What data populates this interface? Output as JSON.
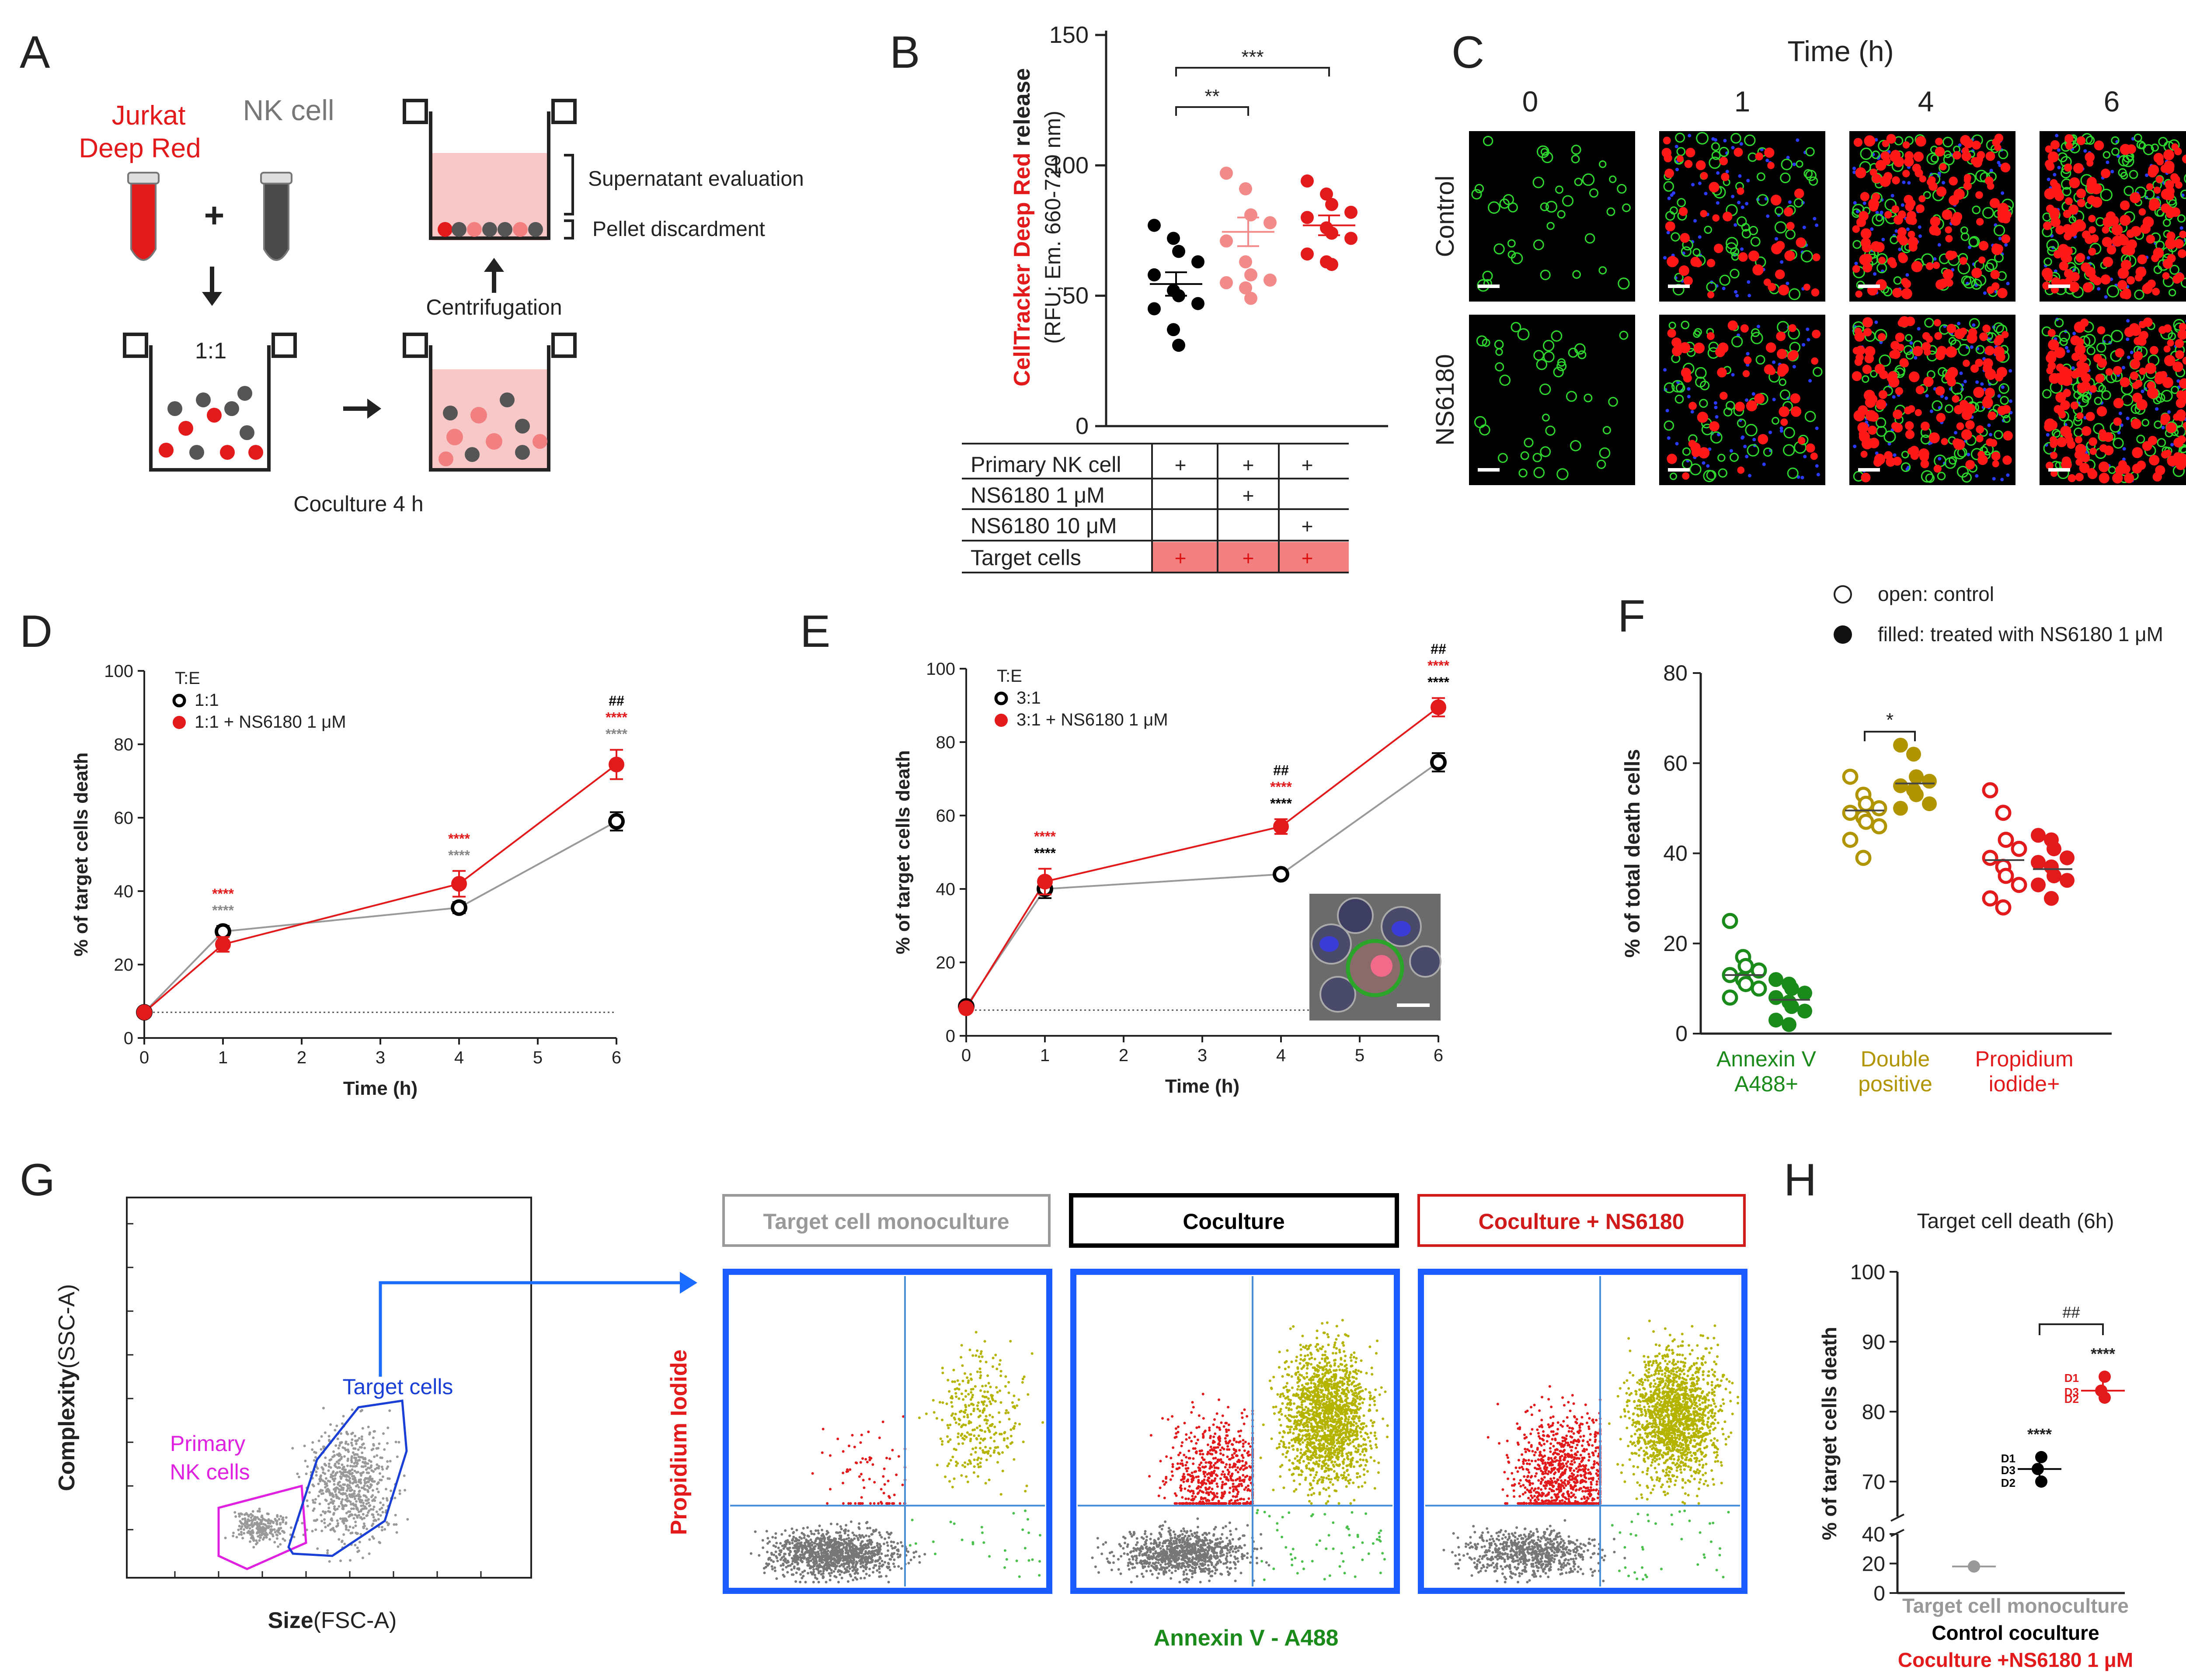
{
  "panel_letters": [
    "A",
    "B",
    "C",
    "D",
    "E",
    "F",
    "G",
    "H"
  ],
  "panelA": {
    "jurkat_line1": "Jurkat",
    "jurkat_line2": "Deep Red",
    "nk_label": "NK cell",
    "plus": "+",
    "ratio": "1:1",
    "coculture": "Coculture 4 h",
    "centrifugation": "Centrifugation",
    "supernatant": "Supernatant evaluation",
    "pellet": "Pellet discardment",
    "colors": {
      "red": "#e31a1c",
      "gray": "#555555",
      "pink": "#f8c8c8"
    }
  },
  "panelC": {
    "title": "Time (h)",
    "columns": [
      "0",
      "1",
      "4",
      "6"
    ],
    "rows": [
      "Control",
      "NS6180"
    ]
  },
  "panelG": {
    "y_label_main": "Complexity",
    "y_label_sub": "(SSC-A)",
    "x_label_main": "Size",
    "x_label_sub": "(FSC-A)",
    "gate_nk_line1": "Primary",
    "gate_nk_line2": "NK cells",
    "gate_target": "Target cells",
    "plot_titles": [
      "Target cell monoculture",
      "Coculture",
      "Coculture + NS6180"
    ],
    "y_label": "Propidium Iodide",
    "x_label": "Annexin V - A488",
    "colors": {
      "gate_nk": "#e020e0",
      "gate_target": "#1a3fd6",
      "frame": "#1a5cff",
      "quad": "#4a90d9"
    }
  },
  "chart_data": [
    {
      "id": "B",
      "type": "scatter",
      "title": "",
      "ylabel_colored": "CellTracker Deep Red",
      "ylabel_rest": " release",
      "ylabel_line2": "(RFU; Em. 660-720 nm)",
      "yticks": [
        0,
        50,
        100,
        150
      ],
      "ylim": [
        0,
        150
      ],
      "series": [
        {
          "color": "#000000",
          "mean": 54.5,
          "sem": 4.5,
          "values": [
            77,
            72,
            67,
            63,
            58,
            52,
            50,
            47,
            45,
            37,
            31
          ]
        },
        {
          "color": "#f28a8a",
          "mean": 74.5,
          "sem": 5.5,
          "values": [
            97,
            91,
            81,
            78,
            71,
            63,
            58,
            56,
            55,
            53,
            49
          ]
        },
        {
          "color": "#e31a1c",
          "mean": 77,
          "sem": 3.8,
          "values": [
            94,
            89,
            85,
            82,
            80,
            76,
            74,
            72,
            66,
            63,
            62
          ]
        }
      ],
      "significance": [
        {
          "from": 0,
          "to": 1,
          "label": "**"
        },
        {
          "from": 0,
          "to": 2,
          "label": "***"
        }
      ],
      "table": {
        "rows": [
          "Primary NK cell",
          "NS6180 1 μM",
          "NS6180 10 μM",
          "Target cells"
        ],
        "cells": [
          [
            "+",
            "+",
            "+"
          ],
          [
            "",
            "+",
            ""
          ],
          [
            "",
            "",
            "+"
          ],
          [
            "+",
            "+",
            "+"
          ]
        ],
        "highlight_color": "#f28080"
      }
    },
    {
      "id": "D",
      "type": "line",
      "xlabel": "Time (h)",
      "ylabel": "% of target cells death",
      "xlim": [
        0,
        6
      ],
      "ylim": [
        0,
        100
      ],
      "xticks": [
        0,
        1,
        2,
        3,
        4,
        5,
        6
      ],
      "yticks": [
        0,
        20,
        40,
        60,
        80,
        100
      ],
      "baseline": 7,
      "legend_title": "T:E",
      "series": [
        {
          "name": "1:1",
          "color": "#000000",
          "line": "#999999",
          "open": true,
          "x": [
            0,
            1,
            4,
            6
          ],
          "y": [
            7,
            29,
            35.5,
            59
          ],
          "err": [
            1,
            1.5,
            1.5,
            2.5
          ]
        },
        {
          "name": "1:1 + NS6180 1 μM",
          "color": "#e31a1c",
          "line": "#e31a1c",
          "open": false,
          "x": [
            0,
            1,
            4,
            6
          ],
          "y": [
            7,
            25.5,
            42,
            74.5
          ],
          "err": [
            1,
            2,
            3.5,
            4
          ]
        }
      ],
      "annotations": [
        {
          "x": 1,
          "labels": [
            {
              "t": "****",
              "c": "#e31a1c"
            },
            {
              "t": "****",
              "c": "#888888"
            }
          ]
        },
        {
          "x": 4,
          "labels": [
            {
              "t": "****",
              "c": "#e31a1c"
            },
            {
              "t": "****",
              "c": "#888888"
            }
          ]
        },
        {
          "x": 6,
          "labels": [
            {
              "t": "##",
              "c": "#000000"
            },
            {
              "t": "****",
              "c": "#e31a1c"
            },
            {
              "t": "****",
              "c": "#888888"
            }
          ]
        }
      ]
    },
    {
      "id": "E",
      "type": "line",
      "xlabel": "Time (h)",
      "ylabel": "% of target cells death",
      "xlim": [
        0,
        6
      ],
      "ylim": [
        0,
        100
      ],
      "xticks": [
        0,
        1,
        2,
        3,
        4,
        5,
        6
      ],
      "yticks": [
        0,
        20,
        40,
        60,
        80,
        100
      ],
      "baseline": 7,
      "legend_title": "T:E",
      "series": [
        {
          "name": "3:1",
          "color": "#000000",
          "line": "#999999",
          "open": true,
          "x": [
            0,
            1,
            4,
            6
          ],
          "y": [
            8,
            40,
            44,
            74.5
          ],
          "err": [
            1,
            2.5,
            1,
            2.5
          ]
        },
        {
          "name": "3:1 + NS6180 1 μM",
          "color": "#e31a1c",
          "line": "#e31a1c",
          "open": false,
          "x": [
            0,
            1,
            4,
            6
          ],
          "y": [
            7.5,
            42,
            57,
            89.5
          ],
          "err": [
            1,
            3.5,
            2,
            2.5
          ]
        }
      ],
      "annotations": [
        {
          "x": 1,
          "labels": [
            {
              "t": "****",
              "c": "#e31a1c"
            },
            {
              "t": "****",
              "c": "#000000"
            }
          ]
        },
        {
          "x": 4,
          "labels": [
            {
              "t": "##",
              "c": "#000000"
            },
            {
              "t": "****",
              "c": "#e31a1c"
            },
            {
              "t": "****",
              "c": "#000000"
            }
          ]
        },
        {
          "x": 6,
          "labels": [
            {
              "t": "##",
              "c": "#000000"
            },
            {
              "t": "****",
              "c": "#e31a1c"
            },
            {
              "t": "****",
              "c": "#000000"
            }
          ]
        }
      ]
    },
    {
      "id": "F",
      "type": "scatter",
      "ylabel": "% of total death cells",
      "ylim": [
        0,
        80
      ],
      "yticks": [
        0,
        20,
        40,
        60,
        80
      ],
      "legend": [
        {
          "label": "open: control",
          "open": true
        },
        {
          "label": "filled: treated with NS6180 1 μM",
          "open": false
        }
      ],
      "groups": [
        {
          "label_line1": "Annexin V",
          "label_line2": "A488+",
          "color": "#1a8a1a",
          "control": {
            "mean": 13,
            "values": [
              25,
              17,
              15,
              14,
              13,
              12,
              11,
              10,
              8
            ]
          },
          "treated": {
            "mean": 7.5,
            "values": [
              12,
              11,
              10,
              9,
              8,
              7,
              6,
              5,
              3,
              2
            ]
          }
        },
        {
          "label_line1": "Double",
          "label_line2": "positive",
          "color": "#b19500",
          "control": {
            "mean": 49.5,
            "values": [
              57,
              53,
              51,
              50,
              49,
              48,
              47,
              46,
              43,
              39
            ]
          },
          "treated": {
            "mean": 55.5,
            "values": [
              64,
              62,
              57,
              56,
              55,
              54,
              53,
              51,
              50
            ]
          }
        },
        {
          "label_line1": "Propidium",
          "label_line2": "iodide+",
          "color": "#e31a1c",
          "control": {
            "mean": 38.5,
            "values": [
              54,
              49,
              43,
              41,
              39,
              37,
              35,
              33,
              30,
              28
            ]
          },
          "treated": {
            "mean": 36.5,
            "values": [
              44,
              43,
              41,
              39,
              38,
              37,
              35,
              34,
              33,
              30
            ]
          }
        }
      ],
      "significance": [
        {
          "group": 1,
          "label": "*"
        }
      ]
    },
    {
      "id": "H",
      "type": "scatter",
      "title": "Target cell death (6h)",
      "ylabel": "% of target cells death",
      "yticks_low": [
        0,
        20,
        40
      ],
      "yticks_high": [
        70,
        80,
        90,
        100
      ],
      "ylim_high": [
        65,
        100
      ],
      "groups": [
        {
          "label": "Target cell monoculture",
          "color": "#999999",
          "mean": 18,
          "values": [
            18,
            18,
            18
          ],
          "donors": []
        },
        {
          "label": "Control coculture",
          "color": "#000000",
          "mean": 71.8,
          "values": [
            73.5,
            71.8,
            70
          ],
          "donors": [
            "D1",
            "D3",
            "D2"
          ],
          "stars": "****"
        },
        {
          "label": "Coculture +NS6180 1 μM",
          "color": "#e31a1c",
          "mean": 83,
          "values": [
            85,
            83,
            82
          ],
          "donors": [
            "D1",
            "D3",
            "D2"
          ],
          "stars": "****"
        }
      ],
      "bracket_label": "##"
    }
  ]
}
